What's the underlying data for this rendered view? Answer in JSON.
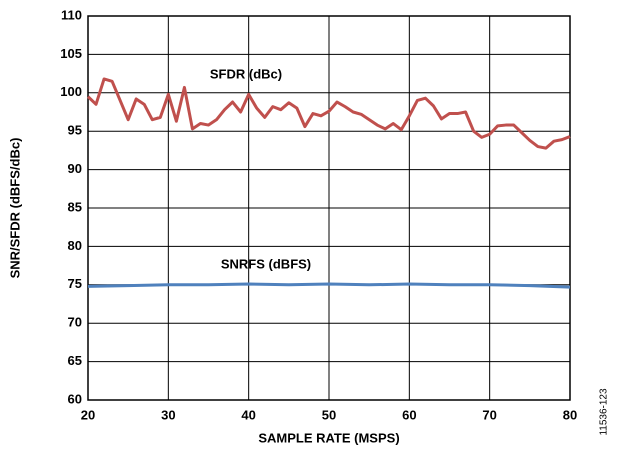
{
  "chart_data": {
    "type": "line",
    "xlabel": "SAMPLE RATE (MSPS)",
    "ylabel": "SNR/SFDR (dBFS/dBc)",
    "figure_code": "11536-123",
    "xlim": [
      20,
      80
    ],
    "xticks": [
      20,
      30,
      40,
      50,
      60,
      70,
      80
    ],
    "ylim": [
      60,
      110
    ],
    "yticks": [
      60,
      65,
      70,
      75,
      80,
      85,
      90,
      95,
      100,
      105,
      110
    ],
    "grid": true,
    "series": [
      {
        "name": "SFDR (dBc)",
        "color": "#c0504d",
        "x": [
          20,
          21,
          22,
          23,
          24,
          25,
          26,
          27,
          28,
          29,
          30,
          31,
          32,
          33,
          34,
          35,
          36,
          37,
          38,
          39,
          40,
          41,
          42,
          43,
          44,
          45,
          46,
          47,
          48,
          49,
          50,
          51,
          52,
          53,
          54,
          55,
          56,
          57,
          58,
          59,
          60,
          61,
          62,
          63,
          64,
          65,
          66,
          67,
          68,
          69,
          70,
          71,
          72,
          73,
          74,
          75,
          76,
          77,
          78,
          79,
          80
        ],
        "values": [
          99.5,
          98.5,
          101.8,
          101.5,
          99,
          96.5,
          99.2,
          98.5,
          96.5,
          96.8,
          99.8,
          96.3,
          100.7,
          95.3,
          96,
          95.8,
          96.5,
          97.8,
          98.8,
          97.5,
          99.8,
          98,
          96.8,
          98.2,
          97.8,
          98.7,
          98,
          95.6,
          97.3,
          97,
          97.6,
          98.8,
          98.2,
          97.5,
          97.2,
          96.5,
          95.8,
          95.3,
          96,
          95.2,
          97,
          99,
          99.3,
          98.3,
          96.6,
          97.3,
          97.3,
          97.5,
          95,
          94.2,
          94.6,
          95.7,
          95.8,
          95.8,
          94.8,
          93.8,
          93,
          92.8,
          93.7,
          93.9,
          94.3
        ]
      },
      {
        "name": "SNRFS (dBFS)",
        "color": "#4f81bd",
        "x": [
          20,
          25,
          30,
          35,
          40,
          45,
          50,
          55,
          60,
          65,
          70,
          75,
          80
        ],
        "values": [
          74.8,
          74.9,
          75,
          75,
          75.1,
          75,
          75.1,
          75,
          75.1,
          75,
          75,
          74.9,
          74.7
        ]
      }
    ]
  }
}
